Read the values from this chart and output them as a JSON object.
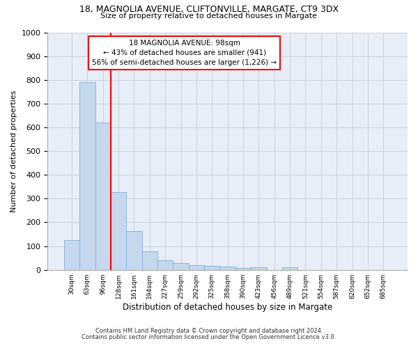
{
  "title1": "18, MAGNOLIA AVENUE, CLIFTONVILLE, MARGATE, CT9 3DX",
  "title2": "Size of property relative to detached houses in Margate",
  "xlabel": "Distribution of detached houses by size in Margate",
  "ylabel": "Number of detached properties",
  "bar_color": "#c5d8ee",
  "bar_edge_color": "#7aafd4",
  "categories": [
    "30sqm",
    "63sqm",
    "96sqm",
    "128sqm",
    "161sqm",
    "194sqm",
    "227sqm",
    "259sqm",
    "292sqm",
    "325sqm",
    "358sqm",
    "390sqm",
    "423sqm",
    "456sqm",
    "489sqm",
    "521sqm",
    "554sqm",
    "587sqm",
    "620sqm",
    "652sqm",
    "685sqm"
  ],
  "values": [
    125,
    790,
    620,
    328,
    162,
    78,
    40,
    27,
    20,
    16,
    15,
    8,
    10,
    0,
    10,
    0,
    0,
    0,
    0,
    0,
    0
  ],
  "ylim": [
    0,
    1000
  ],
  "yticks": [
    0,
    100,
    200,
    300,
    400,
    500,
    600,
    700,
    800,
    900,
    1000
  ],
  "property_bar_index": 2,
  "annotation_line1": "18 MAGNOLIA AVENUE: 98sqm",
  "annotation_line2": "← 43% of detached houses are smaller (941)",
  "annotation_line3": "56% of semi-detached houses are larger (1,226) →",
  "annotation_box_color": "white",
  "annotation_border_color": "red",
  "property_line_color": "red",
  "footnote1": "Contains HM Land Registry data © Crown copyright and database right 2024.",
  "footnote2": "Contains public sector information licensed under the Open Government Licence v3.0.",
  "background_color": "#e8eef8",
  "grid_color": "#c8d0e0"
}
